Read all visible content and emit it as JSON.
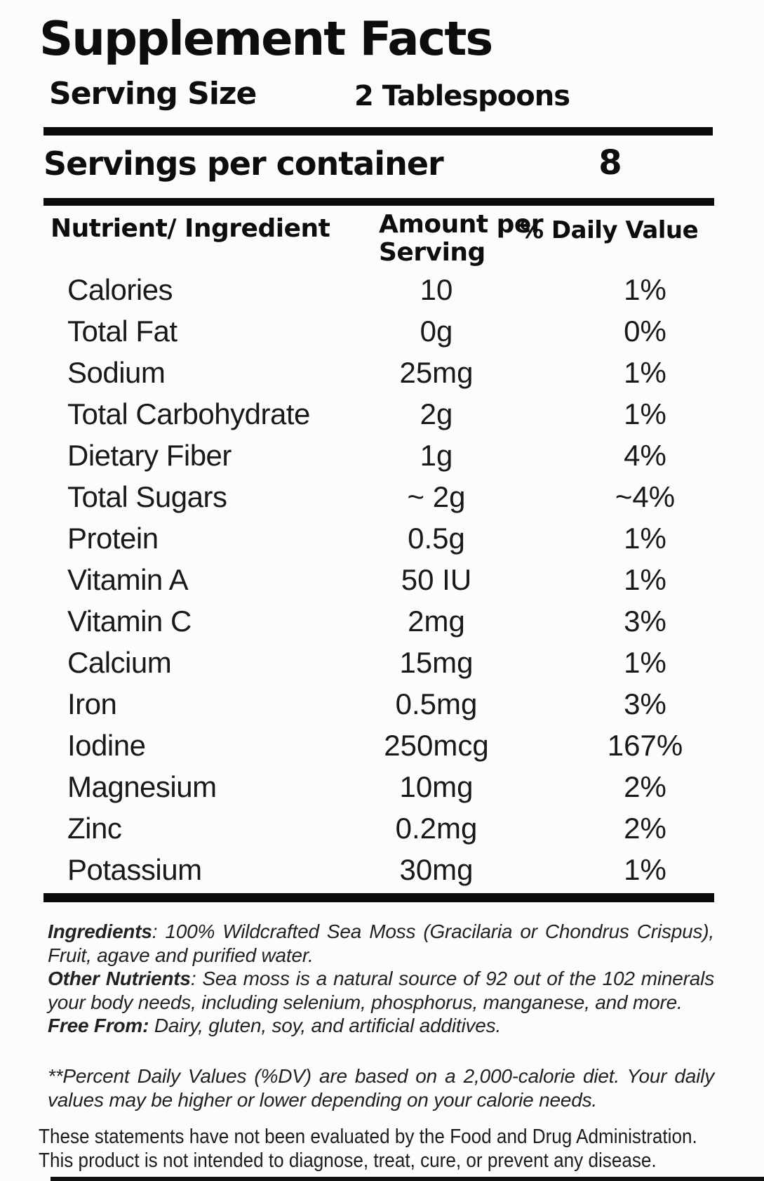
{
  "colors": {
    "background": "#fcfcfc",
    "text": "#161616",
    "rule": "#0b0b0b"
  },
  "header": {
    "title": "Supplement Facts",
    "serving_size_label": "Serving Size",
    "serving_size_value": "2 Tablespoons",
    "servings_per_container_label": "Servings per container",
    "servings_per_container_value": "8"
  },
  "table": {
    "columns": [
      "Nutrient/ Ingredient",
      "Amount per Serving",
      "% Daily Value"
    ],
    "rows": [
      {
        "nutrient": "Calories",
        "amount": "10",
        "dv": "1%"
      },
      {
        "nutrient": "Total Fat",
        "amount": "0g",
        "dv": "0%"
      },
      {
        "nutrient": "Sodium",
        "amount": "25mg",
        "dv": "1%"
      },
      {
        "nutrient": "Total Carbohydrate",
        "amount": "2g",
        "dv": "1%"
      },
      {
        "nutrient": "Dietary Fiber",
        "amount": "1g",
        "dv": "4%"
      },
      {
        "nutrient": "Total Sugars",
        "amount": "~ 2g",
        "dv": "~4%"
      },
      {
        "nutrient": "Protein",
        "amount": "0.5g",
        "dv": "1%"
      },
      {
        "nutrient": "Vitamin A",
        "amount": "50 IU",
        "dv": "1%"
      },
      {
        "nutrient": "Vitamin C",
        "amount": "2mg",
        "dv": "3%"
      },
      {
        "nutrient": "Calcium",
        "amount": "15mg",
        "dv": "1%"
      },
      {
        "nutrient": "Iron",
        "amount": "0.5mg",
        "dv": "3%"
      },
      {
        "nutrient": "Iodine",
        "amount": "250mcg",
        "dv": "167%"
      },
      {
        "nutrient": "Magnesium",
        "amount": "10mg",
        "dv": "2%"
      },
      {
        "nutrient": "Zinc",
        "amount": "0.2mg",
        "dv": "2%"
      },
      {
        "nutrient": "Potassium",
        "amount": "30mg",
        "dv": "1%"
      }
    ]
  },
  "footnotes": {
    "ingredients_label": "Ingredients",
    "ingredients_text": ": 100% Wildcrafted Sea Moss (Gracilaria or Chondrus Crispus), Fruit, agave and purified water.",
    "other_nutrients_label": "Other Nutrients",
    "other_nutrients_text": ": Sea moss is a natural source of 92 out of the 102 minerals your body needs, including selenium, phosphorus, manganese, and more.",
    "free_from_label": "Free From:",
    "free_from_text": " Dairy, gluten, soy, and artificial additives.",
    "dv_note": "**Percent Daily Values (%DV) are based on a 2,000-calorie diet. Your daily values may be higher or lower depending on your calorie needs.",
    "fda_line1": "These statements have not been evaluated by the Food and Drug Administration.",
    "fda_line2": "This product is not intended to diagnose, treat, cure, or prevent any disease."
  }
}
